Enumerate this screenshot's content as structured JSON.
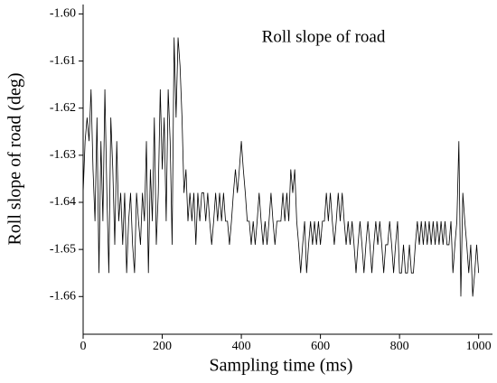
{
  "chart_data": {
    "type": "line",
    "title": "Roll slope of road",
    "x_label": "Sampling time (ms)",
    "y_label": "Roll slope of road (deg)",
    "xlim": [
      0,
      1035
    ],
    "xticks": [
      0,
      200,
      400,
      600,
      800,
      1000
    ],
    "ylim": [
      -1.668,
      -1.598
    ],
    "yticks": [
      {
        "value": -1.6,
        "label": "-1.60"
      },
      {
        "value": -1.61,
        "label": "-1.61"
      },
      {
        "value": -1.62,
        "label": "-1.62"
      },
      {
        "value": -1.63,
        "label": "-1.63"
      },
      {
        "value": -1.64,
        "label": "-1.64"
      },
      {
        "value": -1.65,
        "label": "-1.65"
      },
      {
        "value": -1.66,
        "label": "-1.66"
      }
    ],
    "grid": false,
    "x": [
      0,
      5,
      10,
      15,
      20,
      25,
      30,
      35,
      40,
      45,
      50,
      55,
      60,
      65,
      70,
      75,
      80,
      85,
      90,
      95,
      100,
      105,
      110,
      115,
      120,
      125,
      130,
      135,
      140,
      145,
      150,
      155,
      160,
      165,
      170,
      175,
      180,
      185,
      190,
      195,
      200,
      205,
      210,
      215,
      220,
      225,
      230,
      235,
      240,
      245,
      250,
      255,
      260,
      265,
      270,
      275,
      280,
      285,
      290,
      295,
      300,
      305,
      310,
      315,
      320,
      325,
      330,
      335,
      340,
      345,
      350,
      355,
      360,
      365,
      370,
      375,
      380,
      385,
      390,
      395,
      400,
      405,
      410,
      415,
      420,
      425,
      430,
      435,
      440,
      445,
      450,
      455,
      460,
      465,
      470,
      475,
      480,
      485,
      490,
      495,
      500,
      505,
      510,
      515,
      520,
      525,
      530,
      535,
      540,
      545,
      550,
      555,
      560,
      565,
      570,
      575,
      580,
      585,
      590,
      595,
      600,
      605,
      610,
      615,
      620,
      625,
      630,
      635,
      640,
      645,
      650,
      655,
      660,
      665,
      670,
      675,
      680,
      685,
      690,
      695,
      700,
      705,
      710,
      715,
      720,
      725,
      730,
      735,
      740,
      745,
      750,
      755,
      760,
      765,
      770,
      775,
      780,
      785,
      790,
      795,
      800,
      805,
      810,
      815,
      820,
      825,
      830,
      835,
      840,
      845,
      850,
      855,
      860,
      865,
      870,
      875,
      880,
      885,
      890,
      895,
      900,
      905,
      910,
      915,
      920,
      925,
      930,
      935,
      940,
      945,
      950,
      955,
      960,
      965,
      970,
      975,
      980,
      985,
      990,
      995,
      1000
    ],
    "series": [
      {
        "name": "Roll slope of road",
        "color": "#000000",
        "values": [
          -1.638,
          -1.627,
          -1.622,
          -1.627,
          -1.616,
          -1.633,
          -1.644,
          -1.622,
          -1.655,
          -1.627,
          -1.644,
          -1.616,
          -1.638,
          -1.655,
          -1.622,
          -1.633,
          -1.649,
          -1.627,
          -1.644,
          -1.638,
          -1.649,
          -1.638,
          -1.655,
          -1.644,
          -1.638,
          -1.649,
          -1.655,
          -1.638,
          -1.644,
          -1.649,
          -1.638,
          -1.644,
          -1.627,
          -1.655,
          -1.633,
          -1.644,
          -1.622,
          -1.649,
          -1.638,
          -1.616,
          -1.633,
          -1.622,
          -1.644,
          -1.616,
          -1.627,
          -1.649,
          -1.605,
          -1.622,
          -1.605,
          -1.611,
          -1.622,
          -1.638,
          -1.633,
          -1.644,
          -1.638,
          -1.644,
          -1.638,
          -1.649,
          -1.638,
          -1.644,
          -1.638,
          -1.638,
          -1.644,
          -1.638,
          -1.644,
          -1.649,
          -1.644,
          -1.638,
          -1.644,
          -1.638,
          -1.644,
          -1.638,
          -1.644,
          -1.644,
          -1.649,
          -1.644,
          -1.638,
          -1.633,
          -1.638,
          -1.633,
          -1.627,
          -1.633,
          -1.638,
          -1.644,
          -1.644,
          -1.649,
          -1.644,
          -1.649,
          -1.644,
          -1.638,
          -1.644,
          -1.649,
          -1.644,
          -1.649,
          -1.644,
          -1.638,
          -1.644,
          -1.649,
          -1.644,
          -1.644,
          -1.644,
          -1.638,
          -1.644,
          -1.638,
          -1.644,
          -1.633,
          -1.638,
          -1.633,
          -1.644,
          -1.649,
          -1.655,
          -1.649,
          -1.644,
          -1.655,
          -1.649,
          -1.644,
          -1.649,
          -1.644,
          -1.649,
          -1.644,
          -1.649,
          -1.644,
          -1.644,
          -1.638,
          -1.644,
          -1.638,
          -1.644,
          -1.649,
          -1.644,
          -1.638,
          -1.644,
          -1.638,
          -1.644,
          -1.649,
          -1.644,
          -1.649,
          -1.644,
          -1.649,
          -1.655,
          -1.649,
          -1.644,
          -1.649,
          -1.655,
          -1.649,
          -1.644,
          -1.649,
          -1.655,
          -1.649,
          -1.644,
          -1.649,
          -1.644,
          -1.649,
          -1.655,
          -1.649,
          -1.649,
          -1.644,
          -1.649,
          -1.655,
          -1.649,
          -1.644,
          -1.655,
          -1.655,
          -1.649,
          -1.655,
          -1.655,
          -1.649,
          -1.655,
          -1.655,
          -1.649,
          -1.644,
          -1.649,
          -1.644,
          -1.649,
          -1.644,
          -1.649,
          -1.644,
          -1.649,
          -1.644,
          -1.649,
          -1.644,
          -1.649,
          -1.644,
          -1.649,
          -1.644,
          -1.649,
          -1.649,
          -1.644,
          -1.655,
          -1.649,
          -1.644,
          -1.627,
          -1.66,
          -1.638,
          -1.644,
          -1.649,
          -1.655,
          -1.649,
          -1.66,
          -1.655,
          -1.649,
          -1.655
        ]
      }
    ]
  }
}
